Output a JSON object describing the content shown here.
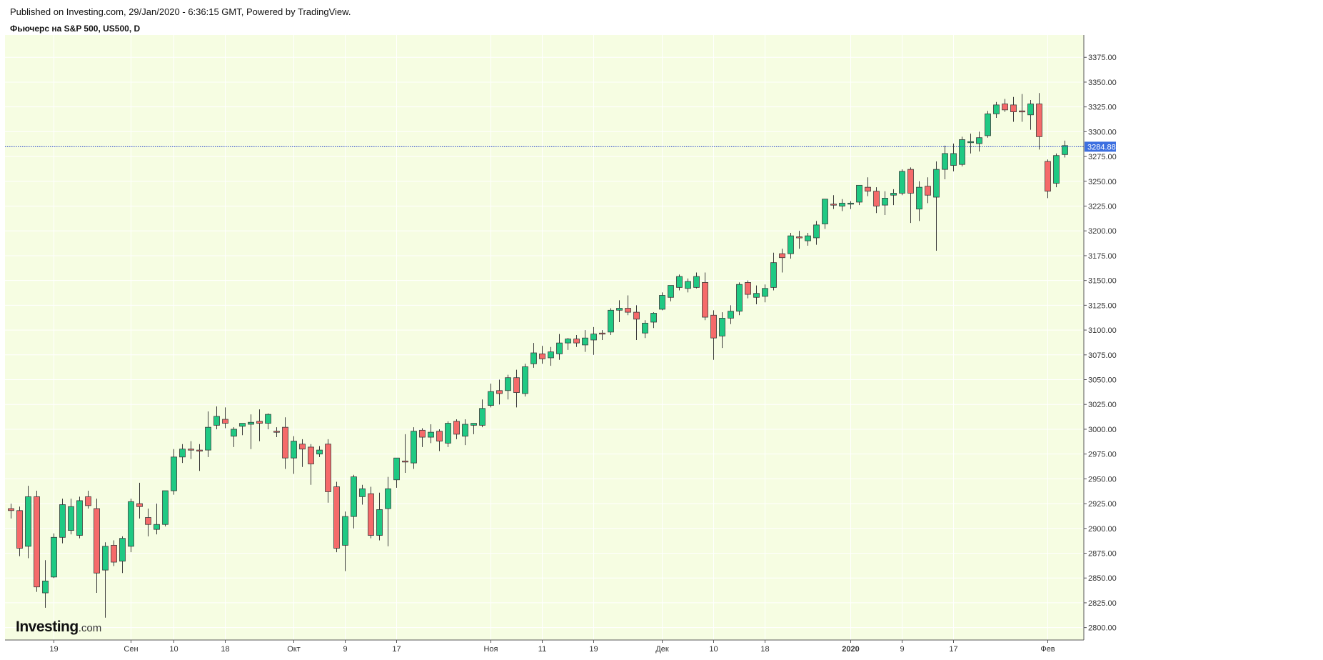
{
  "header": {
    "published": "Published on Investing.com, 29/Jan/2020 - 6:36:15 GMT, Powered by TradingView.",
    "title": "Фьючерс на S&P 500, US500, D"
  },
  "logo": {
    "main": "Investing",
    "suffix": ".com"
  },
  "colors": {
    "background": "#f6fde2",
    "up": "#1fc983",
    "down": "#f56a6a",
    "wick": "#3a3a3a",
    "price_line": "#2340c9",
    "price_label_bg": "#3c6fe0"
  },
  "chart_data": {
    "type": "candlestick",
    "title": "Фьючерс на S&P 500, US500, D",
    "ylim": [
      2787.5,
      3397.5
    ],
    "y_ticks": [
      2800,
      2825,
      2850,
      2875,
      2900,
      2925,
      2950,
      2975,
      3000,
      3025,
      3050,
      3075,
      3100,
      3125,
      3150,
      3175,
      3200,
      3225,
      3250,
      3275,
      3300,
      3325,
      3350,
      3375
    ],
    "y_tick_labels": [
      "2800.00",
      "2825.00",
      "2850.00",
      "2875.00",
      "2900.00",
      "2925.00",
      "2950.00",
      "2975.00",
      "3000.00",
      "3025.00",
      "3050.00",
      "3075.00",
      "3100.00",
      "3125.00",
      "3150.00",
      "3175.00",
      "3200.00",
      "3225.00",
      "3250.00",
      "3275.00",
      "3300.00",
      "3325.00",
      "3350.00",
      "3375.00"
    ],
    "x_ticks": [
      {
        "label": "19",
        "index": 5
      },
      {
        "label": "Сен",
        "index": 14
      },
      {
        "label": "10",
        "index": 19
      },
      {
        "label": "18",
        "index": 25
      },
      {
        "label": "Окт",
        "index": 33
      },
      {
        "label": "9",
        "index": 39
      },
      {
        "label": "17",
        "index": 45
      },
      {
        "label": "Ноя",
        "index": 56
      },
      {
        "label": "11",
        "index": 62
      },
      {
        "label": "19",
        "index": 68
      },
      {
        "label": "Дек",
        "index": 76
      },
      {
        "label": "10",
        "index": 82
      },
      {
        "label": "18",
        "index": 88
      },
      {
        "label": "2020",
        "index": 98,
        "bold": true
      },
      {
        "label": "9",
        "index": 104
      },
      {
        "label": "17",
        "index": 110
      },
      {
        "label": "Фев",
        "index": 121
      }
    ],
    "current_price": 3284.88,
    "current_price_label": "3284.88",
    "candles": [
      [
        2920,
        2925,
        2910,
        2918
      ],
      [
        2918,
        2922,
        2872,
        2880
      ],
      [
        2882,
        2943,
        2870,
        2932
      ],
      [
        2932,
        2938,
        2836,
        2841
      ],
      [
        2835,
        2868,
        2820,
        2847
      ],
      [
        2851,
        2895,
        2850,
        2891
      ],
      [
        2891,
        2930,
        2885,
        2924
      ],
      [
        2898,
        2930,
        2894,
        2922
      ],
      [
        2893,
        2932,
        2890,
        2928
      ],
      [
        2932,
        2938,
        2920,
        2923
      ],
      [
        2920,
        2930,
        2835,
        2855
      ],
      [
        2858,
        2886,
        2810,
        2882
      ],
      [
        2883,
        2888,
        2862,
        2866
      ],
      [
        2867,
        2892,
        2855,
        2890
      ],
      [
        2882,
        2930,
        2876,
        2927
      ],
      [
        2925,
        2946,
        2910,
        2922
      ],
      [
        2911,
        2920,
        2892,
        2904
      ],
      [
        2899,
        2925,
        2894,
        2904
      ],
      [
        2904,
        2938,
        2902,
        2938
      ],
      [
        2938,
        2980,
        2934,
        2972
      ],
      [
        2972,
        2985,
        2966,
        2980
      ],
      [
        2980,
        2988,
        2970,
        2979
      ],
      [
        2979,
        2985,
        2958,
        2978
      ],
      [
        2979,
        3018,
        2972,
        3002
      ],
      [
        3004,
        3023,
        3000,
        3013
      ],
      [
        3010,
        3022,
        3001,
        3006
      ],
      [
        2993,
        3002,
        2982,
        3000
      ],
      [
        3003,
        3006,
        2994,
        3006
      ],
      [
        3005,
        3015,
        2980,
        3007
      ],
      [
        3008,
        3020,
        2988,
        3006
      ],
      [
        3006,
        3016,
        3000,
        3015
      ],
      [
        2998,
        3002,
        2992,
        2997
      ],
      [
        3002,
        3012,
        2960,
        2971
      ],
      [
        2971,
        2993,
        2955,
        2988
      ],
      [
        2985,
        2990,
        2962,
        2980
      ],
      [
        2982,
        2985,
        2944,
        2965
      ],
      [
        2975,
        2983,
        2972,
        2979
      ],
      [
        2985,
        2990,
        2926,
        2937
      ],
      [
        2942,
        2947,
        2876,
        2880
      ],
      [
        2883,
        2917,
        2857,
        2912
      ],
      [
        2912,
        2954,
        2900,
        2952
      ],
      [
        2932,
        2944,
        2924,
        2940
      ],
      [
        2935,
        2942,
        2890,
        2893
      ],
      [
        2893,
        2936,
        2888,
        2919
      ],
      [
        2920,
        2952,
        2882,
        2940
      ],
      [
        2949,
        2970,
        2941,
        2971
      ],
      [
        2968,
        2995,
        2956,
        2967
      ],
      [
        2966,
        3002,
        2960,
        2998
      ],
      [
        2999,
        3001,
        2982,
        2992
      ],
      [
        2992,
        3005,
        2986,
        2997
      ],
      [
        2998,
        3000,
        2978,
        2988
      ],
      [
        2986,
        3008,
        2982,
        3006
      ],
      [
        3008,
        3010,
        2990,
        2995
      ],
      [
        2993,
        3010,
        2984,
        3005
      ],
      [
        3004,
        3006,
        2995,
        3006
      ],
      [
        3004,
        3030,
        3002,
        3021
      ],
      [
        3024,
        3046,
        3022,
        3038
      ],
      [
        3039,
        3050,
        3025,
        3036
      ],
      [
        3039,
        3055,
        3030,
        3052
      ],
      [
        3052,
        3060,
        3022,
        3037
      ],
      [
        3036,
        3066,
        3033,
        3063
      ],
      [
        3066,
        3087,
        3062,
        3077
      ],
      [
        3076,
        3084,
        3066,
        3071
      ],
      [
        3072,
        3083,
        3064,
        3078
      ],
      [
        3076,
        3096,
        3070,
        3087
      ],
      [
        3087,
        3092,
        3080,
        3091
      ],
      [
        3091,
        3095,
        3083,
        3087
      ],
      [
        3085,
        3100,
        3078,
        3092
      ],
      [
        3090,
        3103,
        3075,
        3096
      ],
      [
        3097,
        3100,
        3090,
        3096
      ],
      [
        3098,
        3122,
        3095,
        3120
      ],
      [
        3120,
        3130,
        3108,
        3122
      ],
      [
        3122,
        3135,
        3115,
        3118
      ],
      [
        3118,
        3125,
        3090,
        3111
      ],
      [
        3097,
        3110,
        3092,
        3107
      ],
      [
        3108,
        3118,
        3102,
        3117
      ],
      [
        3121,
        3138,
        3120,
        3135
      ],
      [
        3133,
        3145,
        3129,
        3145
      ],
      [
        3143,
        3156,
        3140,
        3154
      ],
      [
        3142,
        3152,
        3138,
        3149
      ],
      [
        3143,
        3158,
        3142,
        3154
      ],
      [
        3148,
        3158,
        3110,
        3113
      ],
      [
        3115,
        3120,
        3070,
        3092
      ],
      [
        3094,
        3118,
        3082,
        3112
      ],
      [
        3112,
        3125,
        3106,
        3119
      ],
      [
        3119,
        3148,
        3115,
        3146
      ],
      [
        3148,
        3150,
        3132,
        3136
      ],
      [
        3133,
        3145,
        3126,
        3137
      ],
      [
        3134,
        3146,
        3128,
        3142
      ],
      [
        3143,
        3178,
        3140,
        3168
      ],
      [
        3177,
        3182,
        3158,
        3173
      ],
      [
        3177,
        3198,
        3172,
        3195
      ],
      [
        3194,
        3200,
        3182,
        3193
      ],
      [
        3190,
        3198,
        3185,
        3195
      ],
      [
        3193,
        3210,
        3186,
        3206
      ],
      [
        3207,
        3232,
        3202,
        3232
      ],
      [
        3227,
        3236,
        3222,
        3226
      ],
      [
        3225,
        3232,
        3220,
        3228
      ],
      [
        3227,
        3230,
        3222,
        3228
      ],
      [
        3229,
        3246,
        3226,
        3246
      ],
      [
        3244,
        3254,
        3235,
        3240
      ],
      [
        3240,
        3244,
        3218,
        3225
      ],
      [
        3226,
        3240,
        3216,
        3233
      ],
      [
        3236,
        3242,
        3226,
        3238
      ],
      [
        3238,
        3262,
        3236,
        3260
      ],
      [
        3262,
        3264,
        3208,
        3238
      ],
      [
        3222,
        3250,
        3210,
        3244
      ],
      [
        3245,
        3254,
        3228,
        3236
      ],
      [
        3234,
        3270,
        3180,
        3262
      ],
      [
        3262,
        3286,
        3252,
        3278
      ],
      [
        3266,
        3288,
        3260,
        3278
      ],
      [
        3267,
        3295,
        3265,
        3292
      ],
      [
        3289,
        3298,
        3278,
        3290
      ],
      [
        3288,
        3300,
        3280,
        3294
      ],
      [
        3296,
        3321,
        3294,
        3318
      ],
      [
        3318,
        3330,
        3314,
        3327
      ],
      [
        3328,
        3333,
        3320,
        3322
      ],
      [
        3327,
        3335,
        3310,
        3320
      ],
      [
        3321,
        3338,
        3310,
        3320
      ],
      [
        3317,
        3332,
        3302,
        3328
      ],
      [
        3328,
        3339,
        3282,
        3295
      ],
      [
        3270,
        3272,
        3233,
        3240
      ],
      [
        3248,
        3278,
        3244,
        3276
      ],
      [
        3277,
        3291,
        3274,
        3286
      ]
    ]
  }
}
